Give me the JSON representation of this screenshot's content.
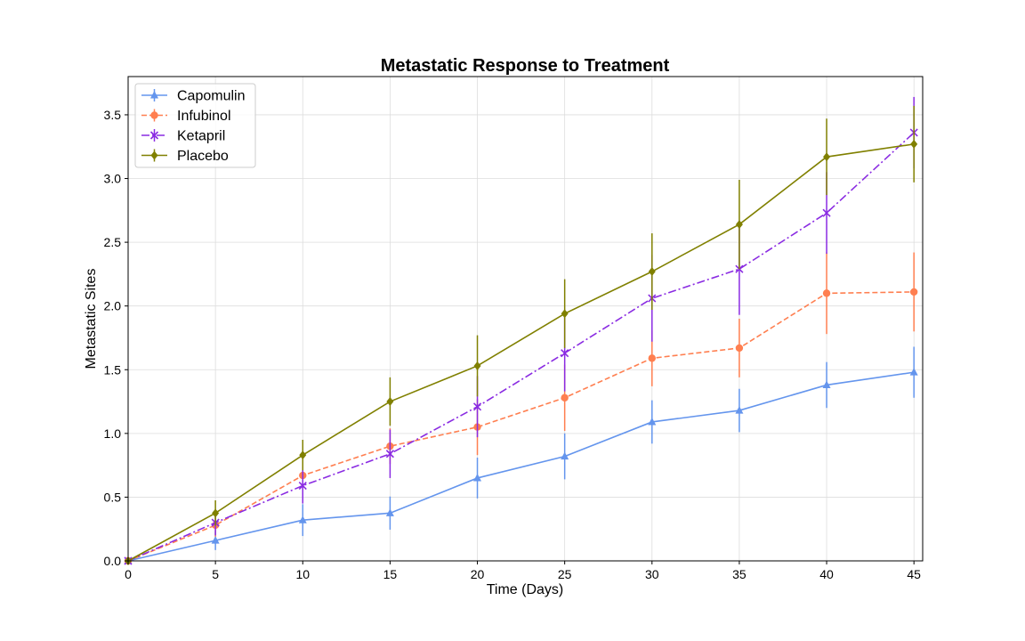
{
  "chart_data": {
    "type": "line",
    "title": "Metastatic Response to Treatment",
    "xlabel": "Time (Days)",
    "ylabel": "Metastatic Sites",
    "xlim": [
      0,
      45.5
    ],
    "ylim": [
      0,
      3.8
    ],
    "xticks": [
      0,
      5,
      10,
      15,
      20,
      25,
      30,
      35,
      40,
      45
    ],
    "yticks": [
      "0.0",
      "0.5",
      "1.0",
      "1.5",
      "2.0",
      "2.5",
      "3.0",
      "3.5"
    ],
    "grid": true,
    "legend_position": "top-left",
    "x": [
      0,
      5,
      10,
      15,
      20,
      25,
      30,
      35,
      40,
      45
    ],
    "series": [
      {
        "name": "Capomulin",
        "color": "#6495ED",
        "linestyle": "solid",
        "marker": "triangle",
        "values": [
          0.0,
          0.16,
          0.32,
          0.375,
          0.65,
          0.82,
          1.09,
          1.18,
          1.38,
          1.48
        ],
        "errors": [
          0.0,
          0.075,
          0.125,
          0.13,
          0.16,
          0.18,
          0.17,
          0.17,
          0.18,
          0.2
        ]
      },
      {
        "name": "Infubinol",
        "color": "#FF7F50",
        "linestyle": "dashed",
        "marker": "circle",
        "values": [
          0.0,
          0.28,
          0.67,
          0.9,
          1.05,
          1.28,
          1.59,
          1.67,
          2.1,
          2.11
        ],
        "errors": [
          0.0,
          0.09,
          0.16,
          0.14,
          0.22,
          0.26,
          0.22,
          0.23,
          0.32,
          0.31
        ]
      },
      {
        "name": "Ketapril",
        "color": "#8A2BE2",
        "linestyle": "dashdot",
        "marker": "x",
        "values": [
          0.0,
          0.3,
          0.59,
          0.84,
          1.21,
          1.63,
          2.06,
          2.29,
          2.73,
          3.36
        ],
        "errors": [
          0.0,
          0.1,
          0.14,
          0.19,
          0.24,
          0.3,
          0.34,
          0.36,
          0.32,
          0.28
        ]
      },
      {
        "name": "Placebo",
        "color": "#808000",
        "linestyle": "solid",
        "marker": "diamond",
        "values": [
          0.0,
          0.375,
          0.83,
          1.25,
          1.53,
          1.94,
          2.27,
          2.64,
          3.17,
          3.27
        ],
        "errors": [
          0.0,
          0.1,
          0.12,
          0.19,
          0.24,
          0.27,
          0.3,
          0.35,
          0.3,
          0.3
        ]
      }
    ]
  }
}
